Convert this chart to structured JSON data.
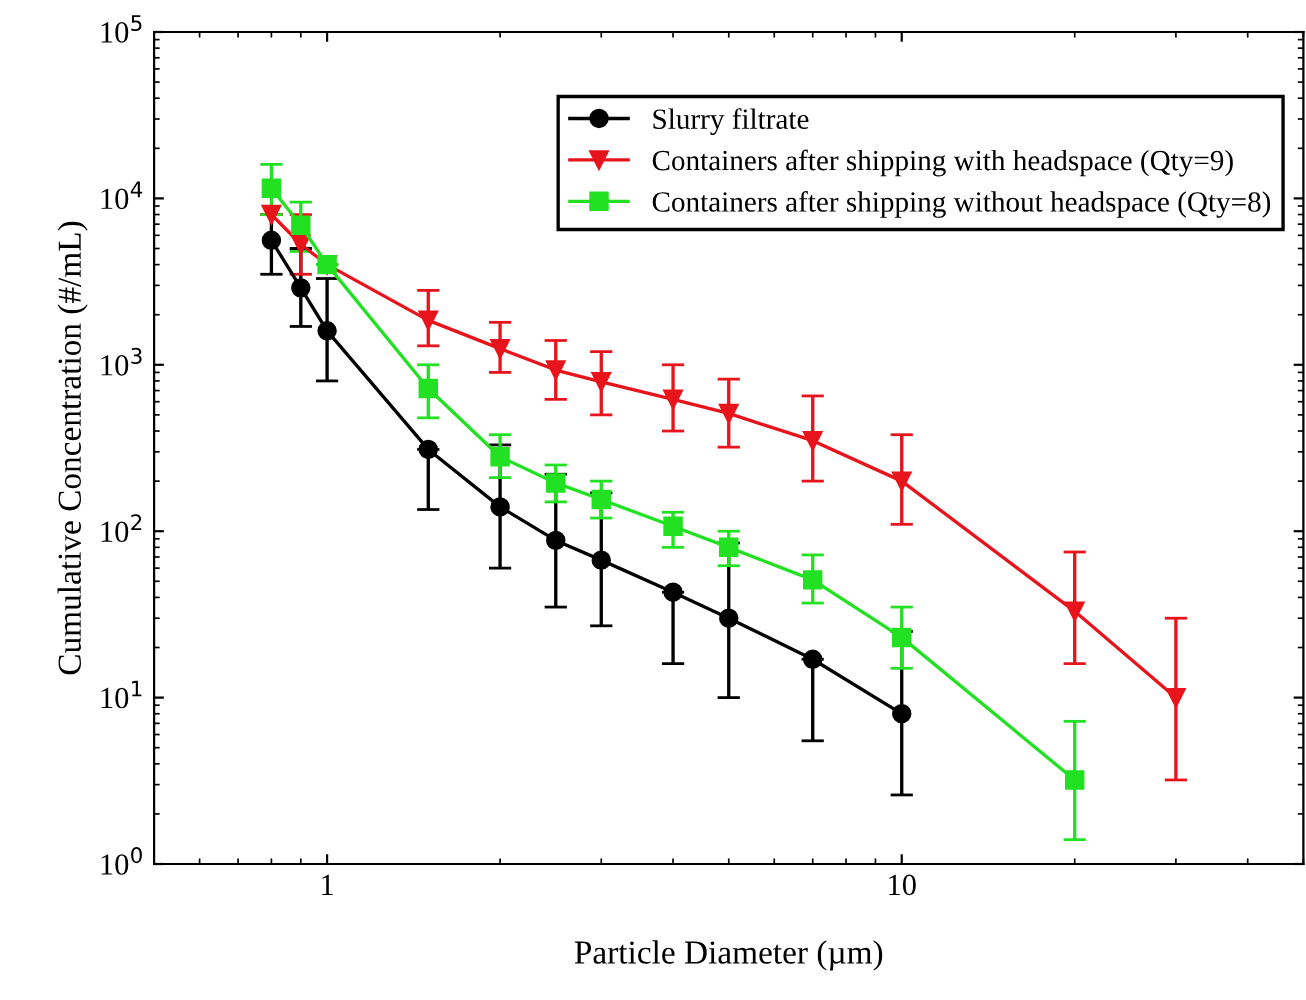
{
  "chart_data": {
    "type": "line",
    "xlabel": "Particle Diameter (µm)",
    "ylabel": "Cumulative Concentration (#/mL)",
    "log": "xy",
    "xlim": [
      0.5,
      50
    ],
    "xticks": [
      1,
      10
    ],
    "ylim": [
      1,
      100000
    ],
    "yticks": [
      {
        "value": 1,
        "label": "10$^{0}$"
      },
      {
        "value": 10,
        "label": "10$^{1}$"
      },
      {
        "value": 100,
        "label": "10$^{2}$"
      },
      {
        "value": 1000,
        "label": "10$^{3}$"
      },
      {
        "value": 10000,
        "label": "10$^{4}$"
      },
      {
        "value": 100000,
        "label": "10$^{5}$"
      }
    ],
    "legend": "top right",
    "grid": false,
    "series": [
      {
        "name": "Slurry filtrate",
        "color": "#000000",
        "marker": "circle",
        "x": [
          0.8,
          0.9,
          1,
          1.5,
          2,
          2.5,
          3,
          4,
          5,
          7,
          10
        ],
        "values": [
          5600,
          2900,
          1600,
          310,
          140,
          88,
          67,
          43,
          30,
          17,
          8
        ],
        "errors": [
          [
            3500,
            8000
          ],
          [
            1700,
            5000
          ],
          [
            800,
            3300
          ],
          [
            135,
            310
          ],
          [
            60,
            330
          ],
          [
            35,
            220
          ],
          [
            27,
            170
          ],
          [
            16,
            43
          ],
          [
            10,
            85
          ],
          [
            5.5,
            17
          ],
          [
            2.6,
            25
          ]
        ]
      },
      {
        "name": "Containers after shipping with headspace (Qty=9)",
        "color": "#e8141c",
        "marker": "triangle",
        "x": [
          0.8,
          0.9,
          1,
          1.5,
          2,
          2.5,
          3,
          4,
          5,
          7,
          10,
          20,
          30
        ],
        "values": [
          8000,
          5300,
          4000,
          1850,
          1250,
          930,
          790,
          620,
          510,
          350,
          200,
          33,
          10
        ],
        "errors": [
          null,
          [
            3500,
            8000
          ],
          null,
          [
            1300,
            2800
          ],
          [
            900,
            1800
          ],
          [
            620,
            1400
          ],
          [
            500,
            1200
          ],
          [
            400,
            1000
          ],
          [
            320,
            820
          ],
          [
            200,
            650
          ],
          [
            110,
            380
          ],
          [
            16,
            75
          ],
          [
            3.2,
            30
          ]
        ]
      },
      {
        "name": "Containers after shipping without headspace (Qty=8)",
        "color": "#22e022",
        "marker": "square",
        "x": [
          0.8,
          0.9,
          1,
          1.5,
          2,
          2.5,
          3,
          4,
          5,
          7,
          10,
          20
        ],
        "values": [
          11500,
          6900,
          4000,
          720,
          280,
          195,
          155,
          107,
          80,
          51,
          23,
          3.2
        ],
        "errors": [
          [
            8000,
            16000
          ],
          [
            4800,
            9500
          ],
          null,
          [
            480,
            1000
          ],
          [
            210,
            380
          ],
          [
            150,
            250
          ],
          [
            120,
            200
          ],
          [
            80,
            130
          ],
          [
            62,
            100
          ],
          [
            37,
            72
          ],
          [
            15,
            35
          ],
          [
            1.4,
            7.2
          ]
        ]
      }
    ]
  }
}
